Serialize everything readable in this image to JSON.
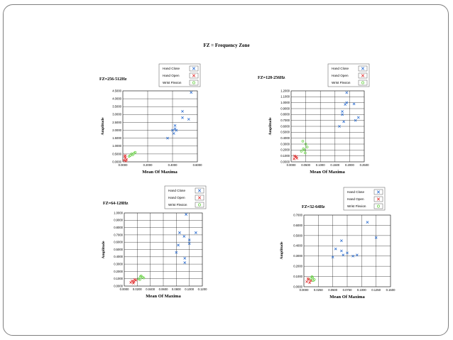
{
  "slide_title": "FZ = Frequency Zone",
  "chart_data": [
    {
      "type": "scatter",
      "title": "FZ=256-512Hz",
      "xlabel": "Mean Of  Maxima",
      "ylabel": "Amplitude",
      "xlim": [
        0,
        0.6
      ],
      "ylim": [
        0,
        4.5
      ],
      "x_ticks": [
        "0.0000",
        "0.2000",
        "0.4000",
        "0.6000"
      ],
      "y_ticks": [
        "0.0000",
        "0.5000",
        "1.0000",
        "1.5000",
        "2.0000",
        "2.5000",
        "3.0000",
        "3.5000",
        "4.0000",
        "4.5000"
      ],
      "grid": true,
      "legend": "top-right",
      "series": [
        {
          "name": "Hand Close",
          "color": "#2e6fd1",
          "marker": "x",
          "points": [
            [
              0.55,
              4.4
            ],
            [
              0.48,
              3.2
            ],
            [
              0.48,
              2.8
            ],
            [
              0.53,
              2.7
            ],
            [
              0.42,
              2.3
            ],
            [
              0.4,
              2.0
            ],
            [
              0.43,
              2.0
            ],
            [
              0.41,
              1.8
            ],
            [
              0.36,
              1.5
            ],
            [
              0.42,
              2.1
            ]
          ]
        },
        {
          "name": "Hand Open",
          "color": "#e03030",
          "marker": "x",
          "points": [
            [
              0.01,
              0.1
            ],
            [
              0.02,
              0.25
            ],
            [
              0.015,
              0.35
            ],
            [
              0.025,
              0.05
            ],
            [
              0.03,
              0.15
            ],
            [
              0.02,
              0.4
            ]
          ]
        },
        {
          "name": "Wrist Flexion",
          "color": "#5fcf3a",
          "marker": "o",
          "points": [
            [
              0.06,
              0.4
            ],
            [
              0.07,
              0.5
            ],
            [
              0.09,
              0.55
            ],
            [
              0.08,
              0.45
            ],
            [
              0.1,
              0.6
            ],
            [
              0.05,
              0.35
            ]
          ]
        }
      ]
    },
    {
      "type": "scatter",
      "title": "FZ=128-256Hz",
      "xlabel": "Mean Of  Maxima",
      "ylabel": "Amplitude",
      "xlim": [
        0,
        0.25
      ],
      "ylim": [
        0,
        1.2
      ],
      "x_ticks": [
        "0.0000",
        "0.0500",
        "0.1000",
        "0.1500",
        "0.2000",
        "0.2500"
      ],
      "y_ticks": [
        "0.0000",
        "0.1000",
        "0.2000",
        "0.3000",
        "0.4000",
        "0.5000",
        "0.6000",
        "0.7000",
        "0.8000",
        "0.9000",
        "1.0000",
        "1.1000",
        "1.2000"
      ],
      "grid": true,
      "legend": "top-right",
      "series": [
        {
          "name": "Hand Close",
          "color": "#2e6fd1",
          "marker": "x",
          "points": [
            [
              0.19,
              1.17
            ],
            [
              0.19,
              1.0
            ],
            [
              0.185,
              0.97
            ],
            [
              0.215,
              0.98
            ],
            [
              0.175,
              0.85
            ],
            [
              0.175,
              0.8
            ],
            [
              0.23,
              0.75
            ],
            [
              0.22,
              0.7
            ],
            [
              0.18,
              0.68
            ],
            [
              0.165,
              0.6
            ]
          ]
        },
        {
          "name": "Hand Open",
          "color": "#e03030",
          "marker": "x",
          "points": [
            [
              0.01,
              0.05
            ],
            [
              0.015,
              0.08
            ],
            [
              0.012,
              0.1
            ],
            [
              0.02,
              0.06
            ],
            [
              0.018,
              0.09
            ]
          ]
        },
        {
          "name": "Wrist Flexion",
          "color": "#5fcf3a",
          "marker": "o",
          "points": [
            [
              0.04,
              0.35
            ],
            [
              0.05,
              0.3
            ],
            [
              0.045,
              0.2
            ],
            [
              0.055,
              0.25
            ],
            [
              0.035,
              0.18
            ],
            [
              0.048,
              0.15
            ],
            [
              0.042,
              0.22
            ]
          ]
        }
      ]
    },
    {
      "type": "scatter",
      "title": "FZ=64-128Hz",
      "xlabel": "Mean Of  Maxima",
      "ylabel": "Amplitude",
      "xlim": [
        0,
        0.12
      ],
      "ylim": [
        0,
        1.0
      ],
      "x_ticks": [
        "0.0000",
        "0.0200",
        "0.0400",
        "0.0600",
        "0.0800",
        "0.1000",
        "0.1200"
      ],
      "y_ticks": [
        "0.0000",
        "0.1000",
        "0.2000",
        "0.3000",
        "0.4000",
        "0.5000",
        "0.6000",
        "0.7000",
        "0.8000",
        "0.9000",
        "1.0000"
      ],
      "grid": true,
      "legend": "top-right",
      "series": [
        {
          "name": "Hand Close",
          "color": "#2e6fd1",
          "marker": "x",
          "points": [
            [
              0.095,
              0.98
            ],
            [
              0.085,
              0.73
            ],
            [
              0.11,
              0.73
            ],
            [
              0.092,
              0.68
            ],
            [
              0.1,
              0.63
            ],
            [
              0.1,
              0.58
            ],
            [
              0.083,
              0.56
            ],
            [
              0.08,
              0.46
            ],
            [
              0.093,
              0.38
            ],
            [
              0.093,
              0.32
            ]
          ]
        },
        {
          "name": "Hand Open",
          "color": "#e03030",
          "marker": "x",
          "points": [
            [
              0.01,
              0.05
            ],
            [
              0.012,
              0.07
            ],
            [
              0.015,
              0.06
            ],
            [
              0.018,
              0.08
            ],
            [
              0.014,
              0.04
            ],
            [
              0.016,
              0.09
            ]
          ]
        },
        {
          "name": "Wrist Flexion",
          "color": "#5fcf3a",
          "marker": "o",
          "points": [
            [
              0.022,
              0.1
            ],
            [
              0.025,
              0.13
            ],
            [
              0.028,
              0.12
            ],
            [
              0.03,
              0.11
            ],
            [
              0.026,
              0.14
            ],
            [
              0.024,
              0.09
            ]
          ]
        }
      ]
    },
    {
      "type": "scatter",
      "title": "FZ=32-64Hz",
      "xlabel": "Mean Of  Maxima",
      "ylabel": "Amplitude",
      "xlim": [
        0,
        0.15
      ],
      "ylim": [
        0,
        0.7
      ],
      "x_ticks": [
        "0.0000",
        "0.0250",
        "0.0500",
        "0.0750",
        "0.1000",
        "0.1250",
        "0.1500"
      ],
      "y_ticks": [
        "0.0000",
        "0.1000",
        "0.2000",
        "0.3000",
        "0.4000",
        "0.5000",
        "0.6000",
        "0.7000"
      ],
      "grid": true,
      "legend": "top-right",
      "series": [
        {
          "name": "Hand Close",
          "color": "#2e6fd1",
          "marker": "x",
          "points": [
            [
              0.11,
              0.63
            ],
            [
              0.125,
              0.48
            ],
            [
              0.065,
              0.45
            ],
            [
              0.055,
              0.37
            ],
            [
              0.065,
              0.35
            ],
            [
              0.075,
              0.33
            ],
            [
              0.068,
              0.31
            ],
            [
              0.085,
              0.3
            ],
            [
              0.092,
              0.31
            ],
            [
              0.05,
              0.29
            ]
          ]
        },
        {
          "name": "Hand Open",
          "color": "#e03030",
          "marker": "x",
          "points": [
            [
              0.005,
              0.05
            ],
            [
              0.008,
              0.07
            ],
            [
              0.01,
              0.04
            ],
            [
              0.007,
              0.08
            ],
            [
              0.012,
              0.06
            ]
          ]
        },
        {
          "name": "Wrist Flexion",
          "color": "#5fcf3a",
          "marker": "o",
          "points": [
            [
              0.012,
              0.08
            ],
            [
              0.015,
              0.09
            ],
            [
              0.018,
              0.07
            ],
            [
              0.014,
              0.1
            ],
            [
              0.016,
              0.06
            ]
          ]
        }
      ]
    }
  ]
}
